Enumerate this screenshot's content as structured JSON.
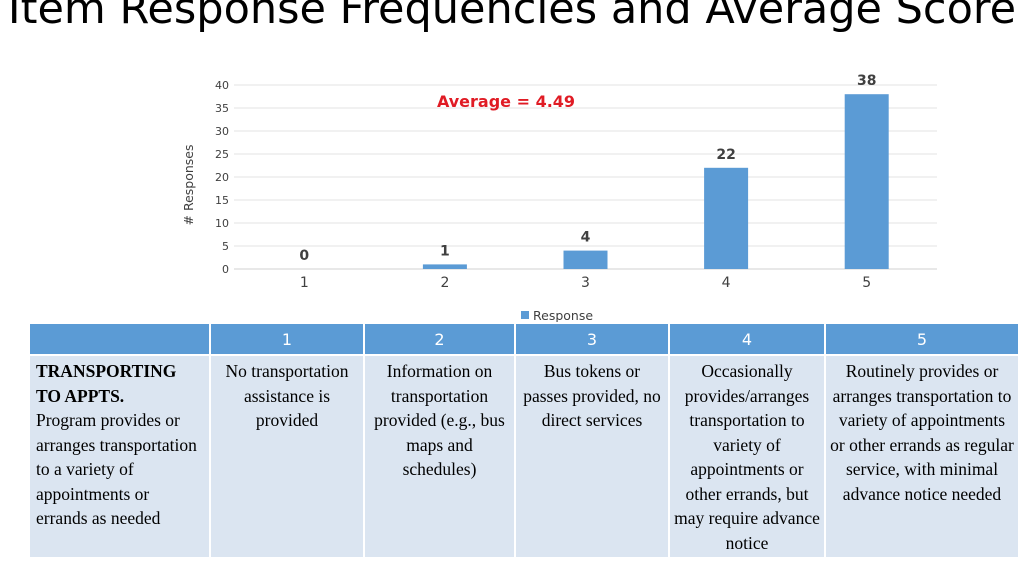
{
  "slide": {
    "title": "Item Response Frequencies and Average Score"
  },
  "chart_data": {
    "type": "bar",
    "title": "",
    "annotation": "Average = 4.49",
    "annotation_color": "#e01b24",
    "categories": [
      "1",
      "2",
      "3",
      "4",
      "5"
    ],
    "series": [
      {
        "name": "Response",
        "values": [
          0,
          1,
          4,
          22,
          38
        ],
        "color": "#5b9bd5"
      }
    ],
    "xlabel": "",
    "ylabel": "# Responses",
    "ylim": [
      0,
      40
    ],
    "yticks": [
      0,
      5,
      10,
      15,
      20,
      25,
      30,
      35,
      40
    ],
    "grid": true,
    "legend": "bottom"
  },
  "rubric": {
    "headers": [
      "",
      "1",
      "2",
      "3",
      "4",
      "5"
    ],
    "row_heading_bold": "TRANSPORTING TO APPTS.",
    "row_heading_text": "Program provides or arranges transportation to a variety of appointments or errands as needed",
    "cells": [
      "No transportation assistance is provided",
      "Information on transportation provided (e.g., bus maps and schedules)",
      "Bus tokens or passes provided, no direct services",
      "Occasionally provides/arranges transportation to variety of appointments or other errands, but may require advance notice",
      "Routinely provides or arranges transportation to variety of appointments or other errands as regular service, with minimal advance notice needed"
    ]
  }
}
